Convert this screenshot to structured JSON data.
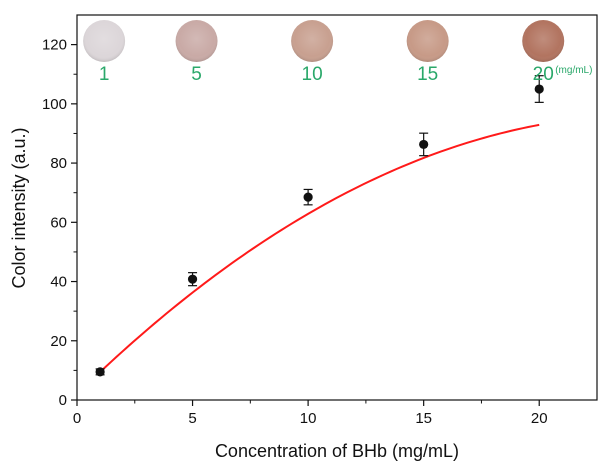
{
  "chart_data": {
    "type": "scatter",
    "xlabel": "Concentration of BHb (mg/mL)",
    "ylabel": "Color intensity (a.u.)",
    "xlim": [
      0,
      22.5
    ],
    "ylim": [
      0,
      130
    ],
    "x_ticks": [
      0,
      5,
      10,
      15,
      20
    ],
    "y_ticks": [
      0,
      20,
      40,
      60,
      80,
      100,
      120
    ],
    "grid": false,
    "series": [
      {
        "x": [
          1,
          5,
          10,
          15,
          20
        ],
        "y": [
          9.5,
          40.8,
          68.5,
          86.3,
          105
        ],
        "error": [
          1.0,
          2.2,
          2.6,
          3.8,
          4.5
        ],
        "marker": "circle",
        "color": "#111111"
      }
    ],
    "fit": {
      "type": "quadratic",
      "color": "#ff1a1a",
      "x_range": [
        1,
        20
      ],
      "coefficients": [
        -0.1542,
        7.63,
        1.98
      ]
    },
    "sample_images": {
      "labels": [
        "1",
        "5",
        "10",
        "15",
        "20"
      ],
      "unit": "(mg/mL)",
      "label_color": "#2aa86a",
      "colors": [
        "#dcd6d9",
        "#c9aaa6",
        "#c8a090",
        "#c79a87",
        "#b27460"
      ]
    }
  }
}
